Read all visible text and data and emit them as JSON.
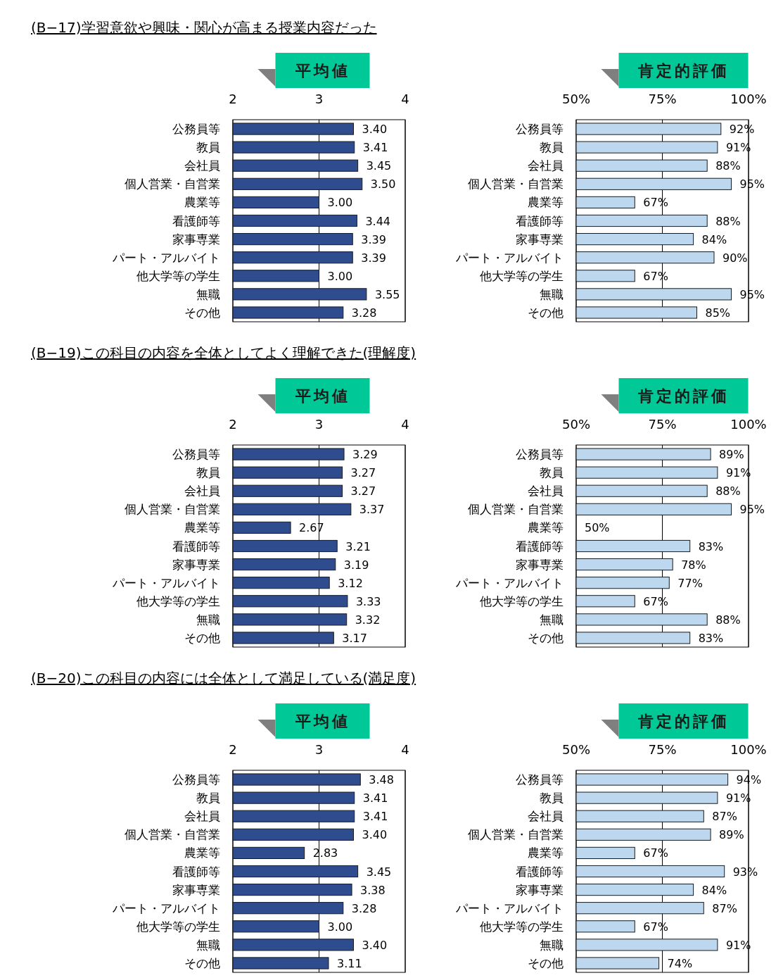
{
  "chart_data": [
    {
      "type": "bar",
      "orientation": "horizontal",
      "title": "平均値",
      "annotations": [
        "(B−17)学習意欲や興味・関心が高まる授業内容だった"
      ],
      "categories": [
        "公務員等",
        "教員",
        "会社員",
        "個人営業・自営業",
        "農業等",
        "看護師等",
        "家事専業",
        "パート・アルバイト",
        "他大学等の学生",
        "無職",
        "その他"
      ],
      "values": [
        3.4,
        3.41,
        3.45,
        3.5,
        3.0,
        3.44,
        3.39,
        3.39,
        3.0,
        3.55,
        3.28
      ],
      "value_labels": [
        "3.40",
        "3.41",
        "3.45",
        "3.50",
        "3.00",
        "3.44",
        "3.39",
        "3.39",
        "3.00",
        "3.55",
        "3.28"
      ],
      "color": "#2e4c8e",
      "xlim": [
        2,
        4
      ],
      "xticks": [
        2,
        3,
        4
      ],
      "grid": "x"
    },
    {
      "type": "bar",
      "orientation": "horizontal",
      "title": "肯定的評価",
      "categories": [
        "公務員等",
        "教員",
        "会社員",
        "個人営業・自営業",
        "農業等",
        "看護師等",
        "家事専業",
        "パート・アルバイト",
        "他大学等の学生",
        "無職",
        "その他"
      ],
      "values": [
        92,
        91,
        88,
        95,
        67,
        88,
        84,
        90,
        67,
        95,
        85
      ],
      "value_labels": [
        "92%",
        "91%",
        "88%",
        "95%",
        "67%",
        "88%",
        "84%",
        "90%",
        "67%",
        "95%",
        "85%"
      ],
      "color": "#bdd7ee",
      "xlim": [
        50,
        100
      ],
      "xticks": [
        {
          "value": 50,
          "label": "50%"
        },
        {
          "value": 75,
          "label": "75%"
        },
        {
          "value": 100,
          "label": "100%"
        }
      ],
      "grid": "x"
    },
    {
      "type": "bar",
      "orientation": "horizontal",
      "title": "平均値",
      "annotations": [
        "(B−19)この科目の内容を全体としてよく理解できた(理解度)"
      ],
      "categories": [
        "公務員等",
        "教員",
        "会社員",
        "個人営業・自営業",
        "農業等",
        "看護師等",
        "家事専業",
        "パート・アルバイト",
        "他大学等の学生",
        "無職",
        "その他"
      ],
      "values": [
        3.29,
        3.27,
        3.27,
        3.37,
        2.67,
        3.21,
        3.19,
        3.12,
        3.33,
        3.32,
        3.17
      ],
      "value_labels": [
        "3.29",
        "3.27",
        "3.27",
        "3.37",
        "2.67",
        "3.21",
        "3.19",
        "3.12",
        "3.33",
        "3.32",
        "3.17"
      ],
      "color": "#2e4c8e",
      "xlim": [
        2,
        4
      ],
      "xticks": [
        2,
        3,
        4
      ],
      "grid": "x"
    },
    {
      "type": "bar",
      "orientation": "horizontal",
      "title": "肯定的評価",
      "categories": [
        "公務員等",
        "教員",
        "会社員",
        "個人営業・自営業",
        "農業等",
        "看護師等",
        "家事専業",
        "パート・アルバイト",
        "他大学等の学生",
        "無職",
        "その他"
      ],
      "values": [
        89,
        91,
        88,
        95,
        50,
        83,
        78,
        77,
        67,
        88,
        83
      ],
      "value_labels": [
        "89%",
        "91%",
        "88%",
        "95%",
        "50%",
        "83%",
        "78%",
        "77%",
        "67%",
        "88%",
        "83%"
      ],
      "color": "#bdd7ee",
      "xlim": [
        50,
        100
      ],
      "xticks": [
        {
          "value": 50,
          "label": "50%"
        },
        {
          "value": 75,
          "label": "75%"
        },
        {
          "value": 100,
          "label": "100%"
        }
      ],
      "grid": "x"
    },
    {
      "type": "bar",
      "orientation": "horizontal",
      "title": "平均値",
      "annotations": [
        "(B−20)この科目の内容には全体として満足している(満足度)"
      ],
      "categories": [
        "公務員等",
        "教員",
        "会社員",
        "個人営業・自営業",
        "農業等",
        "看護師等",
        "家事専業",
        "パート・アルバイト",
        "他大学等の学生",
        "無職",
        "その他"
      ],
      "values": [
        3.48,
        3.41,
        3.41,
        3.4,
        2.83,
        3.45,
        3.38,
        3.28,
        3.0,
        3.4,
        3.11
      ],
      "value_labels": [
        "3.48",
        "3.41",
        "3.41",
        "3.40",
        "2.83",
        "3.45",
        "3.38",
        "3.28",
        "3.00",
        "3.40",
        "3.11"
      ],
      "color": "#2e4c8e",
      "xlim": [
        2,
        4
      ],
      "xticks": [
        2,
        3,
        4
      ],
      "grid": "x"
    },
    {
      "type": "bar",
      "orientation": "horizontal",
      "title": "肯定的評価",
      "categories": [
        "公務員等",
        "教員",
        "会社員",
        "個人営業・自営業",
        "農業等",
        "看護師等",
        "家事専業",
        "パート・アルバイト",
        "他大学等の学生",
        "無職",
        "その他"
      ],
      "values": [
        94,
        91,
        87,
        89,
        67,
        93,
        84,
        87,
        67,
        91,
        74
      ],
      "value_labels": [
        "94%",
        "91%",
        "87%",
        "89%",
        "67%",
        "93%",
        "84%",
        "87%",
        "67%",
        "91%",
        "74%"
      ],
      "color": "#bdd7ee",
      "xlim": [
        50,
        100
      ],
      "xticks": [
        {
          "value": 50,
          "label": "50%"
        },
        {
          "value": 75,
          "label": "75%"
        },
        {
          "value": 100,
          "label": "100%"
        }
      ],
      "grid": "x"
    }
  ]
}
